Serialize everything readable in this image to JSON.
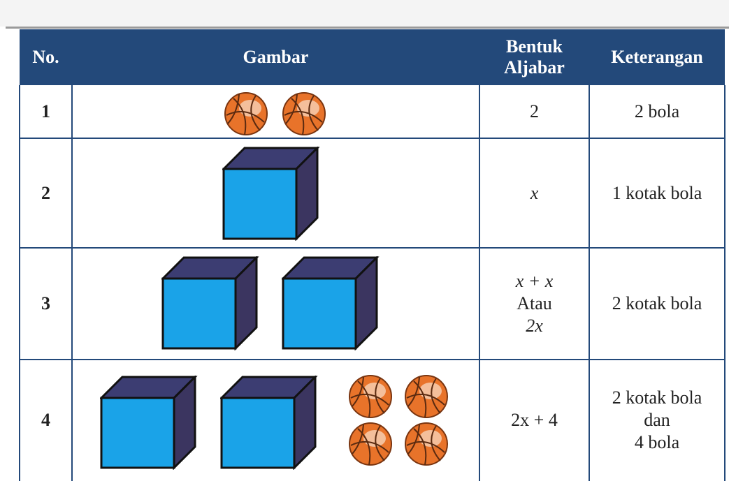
{
  "header": {
    "no": "No.",
    "gambar": "Gambar",
    "bentuk_aljabar": [
      "Bentuk",
      "Aljabar"
    ],
    "keterangan": "Keterangan"
  },
  "rows": [
    {
      "no": "1",
      "bentuk_aljabar": [
        "2"
      ],
      "keterangan": [
        "2 bola"
      ]
    },
    {
      "no": "2",
      "bentuk_aljabar": [
        "x"
      ],
      "keterangan": [
        "1 kotak bola"
      ]
    },
    {
      "no": "3",
      "bentuk_aljabar": [
        "x + x",
        "Atau",
        "2x"
      ],
      "keterangan": [
        "2 kotak bola"
      ]
    },
    {
      "no": "4",
      "bentuk_aljabar": [
        "2x + 4"
      ],
      "keterangan": [
        "2 kotak bola",
        "dan",
        "4 bola"
      ]
    }
  ]
}
